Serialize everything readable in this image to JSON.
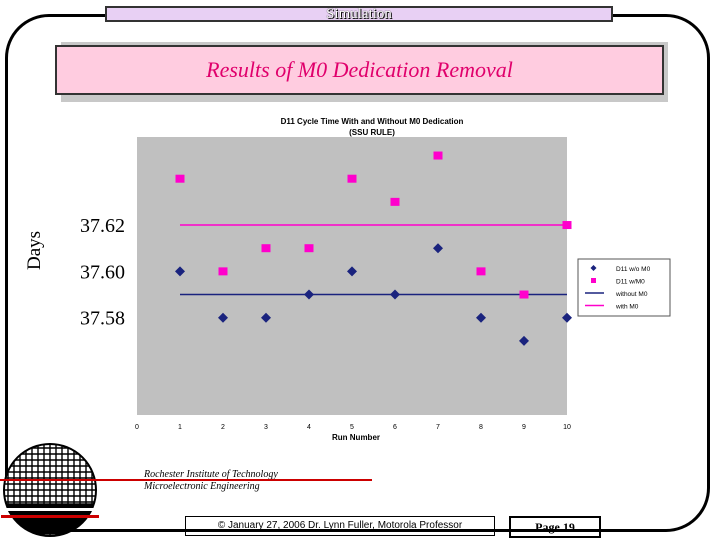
{
  "header": {
    "banner": "Simulation"
  },
  "slide": {
    "title": "Results of M0 Dedication Removal"
  },
  "chart_data": {
    "type": "scatter",
    "title": "D11 Cycle Time With and Without M0 Dedication",
    "subtitle": "(SSU RULE)",
    "xlabel": "Run Number",
    "ylabel": "Days",
    "x_ticks": [
      0,
      1,
      2,
      3,
      4,
      5,
      6,
      7,
      8,
      9,
      10
    ],
    "y_ticks": [
      37.58,
      37.6,
      37.62
    ],
    "y_tick_labels": [
      "37.58",
      "37.60",
      "37.62"
    ],
    "xlim": [
      0,
      10
    ],
    "ylim": [
      37.538,
      37.658
    ],
    "series": [
      {
        "name": "D11 w/o M0",
        "marker": "diamond",
        "color": "#1a237e",
        "x": [
          1,
          2,
          3,
          4,
          5,
          6,
          7,
          8,
          9,
          10
        ],
        "y": [
          37.6,
          37.58,
          37.58,
          37.59,
          37.6,
          37.59,
          37.61,
          37.58,
          37.57,
          37.58
        ]
      },
      {
        "name": "D11 w/M0",
        "marker": "square",
        "color": "#ff00cc",
        "x": [
          1,
          2,
          3,
          4,
          5,
          6,
          7,
          8,
          9,
          10
        ],
        "y": [
          37.64,
          37.6,
          37.61,
          37.61,
          37.64,
          37.63,
          37.65,
          37.6,
          37.59,
          37.62
        ]
      },
      {
        "name": "without M0",
        "type": "line",
        "color": "#1a237e",
        "value": 37.59
      },
      {
        "name": "with M0",
        "type": "line",
        "color": "#ff00cc",
        "value": 37.62
      }
    ],
    "legend": "right"
  },
  "footer": {
    "institution_line1": "Rochester Institute of Technology",
    "institution_line2": "Microelectronic Engineering",
    "copyright": "© January 27, 2006  Dr. Lynn Fuller, Motorola Professor",
    "page": "Page 19"
  }
}
